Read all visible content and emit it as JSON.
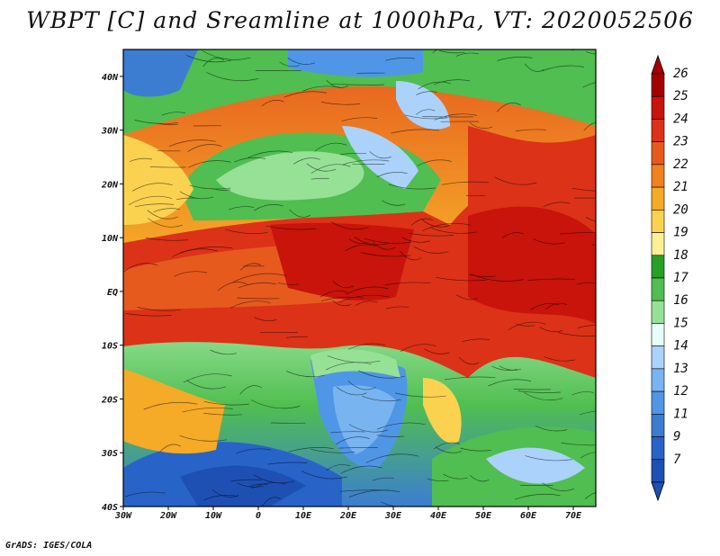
{
  "title": "WBPT [C] and Sreamline at 1000hPa, VT: 2020052506",
  "credit": "GrADS: IGES/COLA",
  "map": {
    "lon_range": [
      -30,
      75
    ],
    "lat_range": [
      -40,
      45
    ],
    "lat_labels": [
      "40N",
      "30N",
      "20N",
      "10N",
      "EQ",
      "10S",
      "20S",
      "30S",
      "40S"
    ],
    "lon_labels": [
      "30W",
      "20W",
      "10W",
      "0",
      "10E",
      "20E",
      "30E",
      "40E",
      "50E",
      "60E",
      "70E"
    ]
  },
  "colorbar": {
    "levels": [
      "26",
      "25",
      "24",
      "23",
      "22",
      "21",
      "20",
      "19",
      "18",
      "17",
      "16",
      "15",
      "14",
      "13",
      "12",
      "11",
      "9",
      "7"
    ],
    "colors": [
      "#a50000",
      "#c8140a",
      "#dc3218",
      "#e65a1e",
      "#f0821e",
      "#f5aa28",
      "#fad250",
      "#fff096",
      "#28a028",
      "#50be50",
      "#96e196",
      "#e6fffa",
      "#aad2fa",
      "#78b4f0",
      "#5096e6",
      "#3c7dd2",
      "#2864c8",
      "#1e50b4"
    ]
  }
}
